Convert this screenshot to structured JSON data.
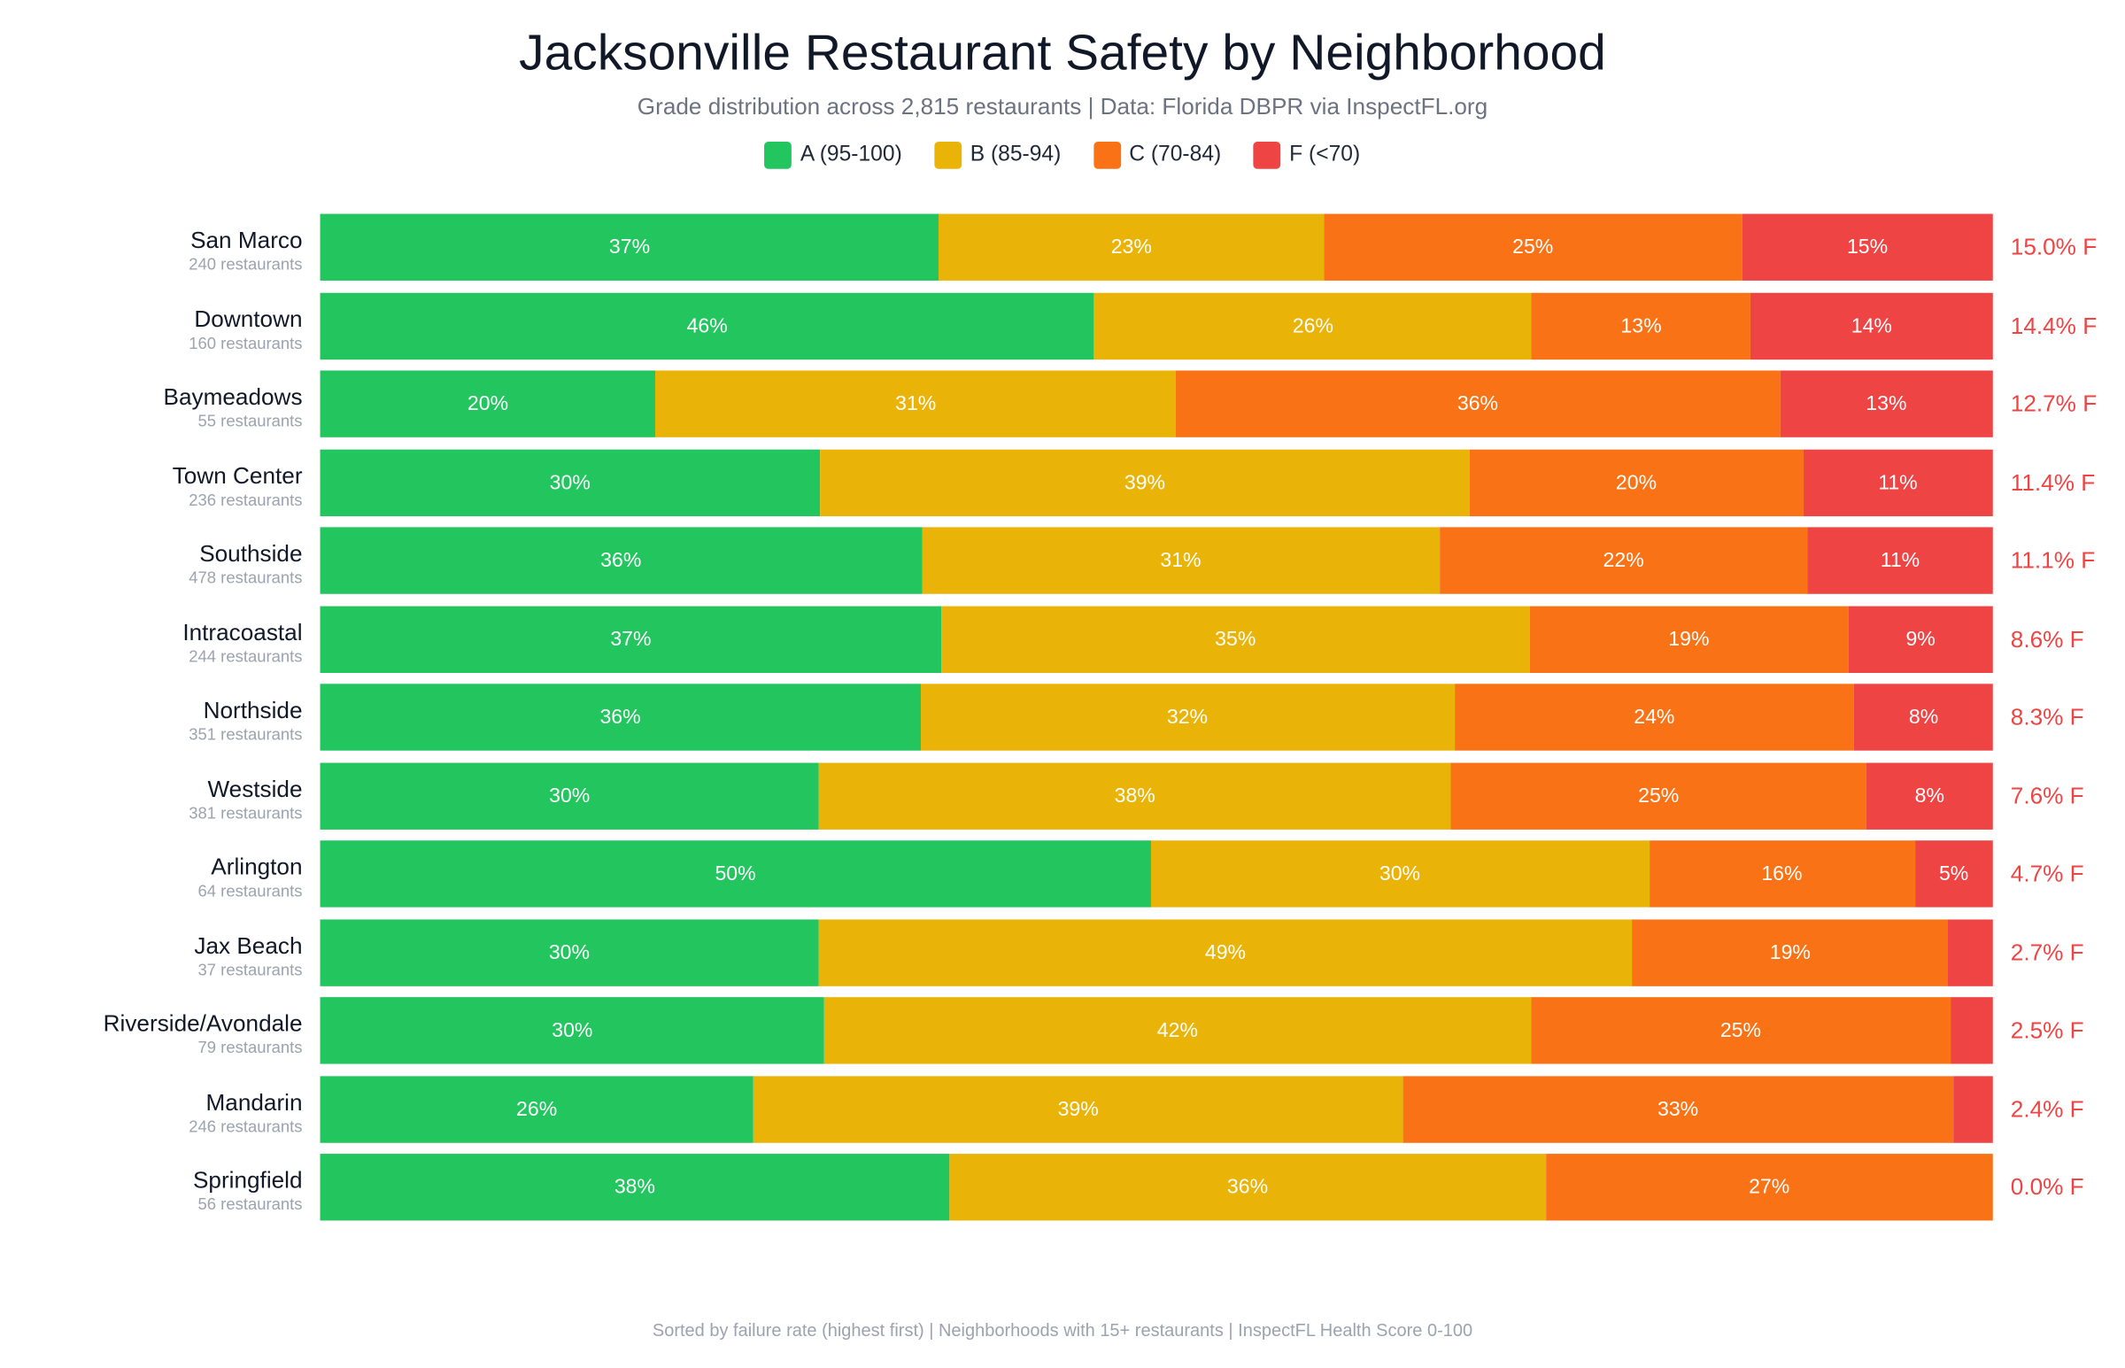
{
  "chart_data": {
    "type": "bar",
    "orientation": "horizontal",
    "stacked": true,
    "title": "Jacksonville Restaurant Safety by Neighborhood",
    "subtitle": "Grade distribution across 2,815 restaurants | Data: Florida DBPR via InspectFL.org",
    "footer": "Sorted by failure rate (highest first) | Neighborhoods with 15+ restaurants | InspectFL Health Score 0-100",
    "legend_placement": "top",
    "series": [
      {
        "key": "A",
        "name": "A (95-100)",
        "color": "#22c55e"
      },
      {
        "key": "B",
        "name": "B (85-94)",
        "color": "#eab308"
      },
      {
        "key": "C",
        "name": "C (70-84)",
        "color": "#f97316"
      },
      {
        "key": "F",
        "name": "F (<70)",
        "color": "#ef4444"
      }
    ],
    "rows": [
      {
        "name": "San Marco",
        "count": "240 restaurants",
        "A": 37,
        "B": 23,
        "C": 25,
        "F": 15.0,
        "labels": [
          "37%",
          "23%",
          "25%",
          "15%"
        ],
        "fail_label": "15.0% F"
      },
      {
        "name": "Downtown",
        "count": "160 restaurants",
        "A": 46,
        "B": 26,
        "C": 13,
        "F": 14.4,
        "labels": [
          "46%",
          "26%",
          "13%",
          "14%"
        ],
        "fail_label": "14.4% F"
      },
      {
        "name": "Baymeadows",
        "count": "55 restaurants",
        "A": 20,
        "B": 31,
        "C": 36,
        "F": 12.7,
        "labels": [
          "20%",
          "31%",
          "36%",
          "13%"
        ],
        "fail_label": "12.7% F"
      },
      {
        "name": "Town Center",
        "count": "236 restaurants",
        "A": 30,
        "B": 39,
        "C": 20,
        "F": 11.4,
        "labels": [
          "30%",
          "39%",
          "20%",
          "11%"
        ],
        "fail_label": "11.4% F"
      },
      {
        "name": "Southside",
        "count": "478 restaurants",
        "A": 36,
        "B": 31,
        "C": 22,
        "F": 11.1,
        "labels": [
          "36%",
          "31%",
          "22%",
          "11%"
        ],
        "fail_label": "11.1% F"
      },
      {
        "name": "Intracoastal",
        "count": "244 restaurants",
        "A": 37,
        "B": 35,
        "C": 19,
        "F": 8.6,
        "labels": [
          "37%",
          "35%",
          "19%",
          "9%"
        ],
        "fail_label": "8.6% F"
      },
      {
        "name": "Northside",
        "count": "351 restaurants",
        "A": 36,
        "B": 32,
        "C": 24,
        "F": 8.3,
        "labels": [
          "36%",
          "32%",
          "24%",
          "8%"
        ],
        "fail_label": "8.3% F"
      },
      {
        "name": "Westside",
        "count": "381 restaurants",
        "A": 30,
        "B": 38,
        "C": 25,
        "F": 7.6,
        "labels": [
          "30%",
          "38%",
          "25%",
          "8%"
        ],
        "fail_label": "7.6% F"
      },
      {
        "name": "Arlington",
        "count": "64 restaurants",
        "A": 50,
        "B": 30,
        "C": 16,
        "F": 4.7,
        "labels": [
          "50%",
          "30%",
          "16%",
          "5%"
        ],
        "fail_label": "4.7% F"
      },
      {
        "name": "Jax Beach",
        "count": "37 restaurants",
        "A": 30,
        "B": 49,
        "C": 19,
        "F": 2.7,
        "labels": [
          "30%",
          "49%",
          "19%",
          ""
        ],
        "fail_label": "2.7% F"
      },
      {
        "name": "Riverside/Avondale",
        "count": "79 restaurants",
        "A": 30,
        "B": 42,
        "C": 25,
        "F": 2.5,
        "labels": [
          "30%",
          "42%",
          "25%",
          ""
        ],
        "fail_label": "2.5% F"
      },
      {
        "name": "Mandarin",
        "count": "246 restaurants",
        "A": 26,
        "B": 39,
        "C": 33,
        "F": 2.4,
        "labels": [
          "26%",
          "39%",
          "33%",
          ""
        ],
        "fail_label": "2.4% F"
      },
      {
        "name": "Springfield",
        "count": "56 restaurants",
        "A": 38,
        "B": 36,
        "C": 27,
        "F": 0.0,
        "labels": [
          "38%",
          "36%",
          "27%",
          ""
        ],
        "fail_label": "0.0% F"
      }
    ]
  }
}
